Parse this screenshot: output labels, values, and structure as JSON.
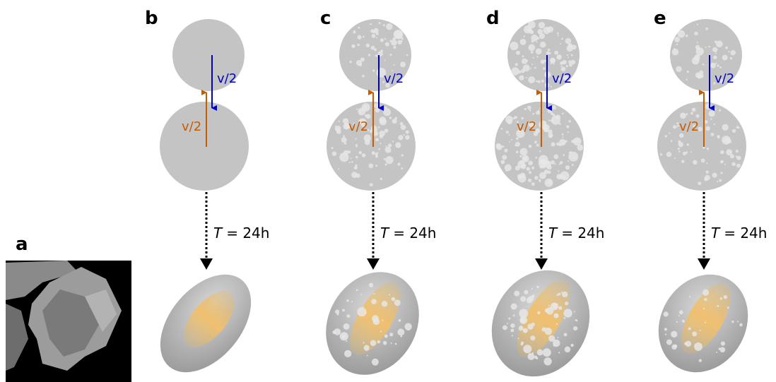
{
  "panel_a": {
    "label": "a"
  },
  "panels": [
    {
      "label": "b",
      "top_velocity": "v/2",
      "bottom_velocity": "v/2",
      "time_symbol": "T",
      "time_value": "= 24h"
    },
    {
      "label": "c",
      "top_velocity": "v/2",
      "bottom_velocity": "v/2",
      "time_symbol": "T",
      "time_value": "= 24h"
    },
    {
      "label": "d",
      "top_velocity": "v/2",
      "bottom_velocity": "v/2",
      "time_symbol": "T",
      "time_value": "= 24h"
    },
    {
      "label": "e",
      "top_velocity": "v/2",
      "bottom_velocity": "v/2",
      "time_symbol": "T",
      "time_value": "= 24h"
    }
  ]
}
